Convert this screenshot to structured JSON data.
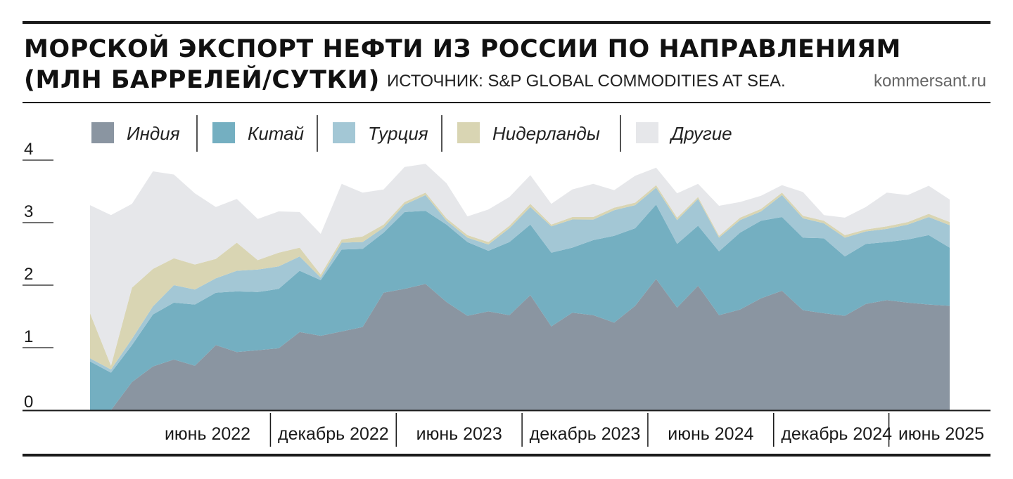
{
  "header": {
    "title_line1": "МОРСКОЙ ЭКСПОРТ НЕФТИ ИЗ РОССИИ ПО НАПРАВЛЕНИЯМ",
    "title_line2": "(МЛН БАРРЕЛЕЙ/СУТКИ)",
    "source": "ИСТОЧНИК: S&P GLOBAL COMMODITIES AT SEA.",
    "brand": "kommersant.ru"
  },
  "chart_data": {
    "type": "area",
    "stacked": true,
    "ylim": [
      0,
      4
    ],
    "y_ticks": [
      0,
      1,
      2,
      3,
      4
    ],
    "x_tick_labels": [
      "июнь 2022",
      "декабрь 2022",
      "июнь 2023",
      "декабрь 2023",
      "июнь 2024",
      "декабрь 2024",
      "июнь 2025"
    ],
    "x_tick_indices": [
      5,
      11,
      17,
      23,
      29,
      35,
      41
    ],
    "legend_position": "top",
    "series": [
      {
        "name": "Индия",
        "color": "#8a95a1",
        "values": [
          0.0,
          0.0,
          0.45,
          0.7,
          0.81,
          0.71,
          1.04,
          0.93,
          0.96,
          0.99,
          1.25,
          1.19,
          1.26,
          1.33,
          1.88,
          1.94,
          2.02,
          1.73,
          1.51,
          1.58,
          1.52,
          1.84,
          1.34,
          1.56,
          1.52,
          1.4,
          1.67,
          2.1,
          1.64,
          1.99,
          1.52,
          1.61,
          1.79,
          1.91,
          1.6,
          1.55,
          1.51,
          1.7,
          1.76,
          1.72,
          1.69,
          1.67
        ]
      },
      {
        "name": "Китай",
        "color": "#74afc1",
        "values": [
          0.78,
          0.6,
          0.59,
          0.83,
          0.91,
          0.98,
          0.84,
          0.97,
          0.93,
          0.95,
          0.98,
          0.89,
          1.31,
          1.25,
          0.96,
          1.23,
          1.17,
          1.24,
          1.18,
          0.97,
          1.17,
          1.13,
          1.18,
          1.04,
          1.2,
          1.39,
          1.24,
          1.19,
          1.02,
          0.96,
          1.02,
          1.23,
          1.24,
          1.18,
          1.16,
          1.2,
          0.95,
          0.96,
          0.93,
          1.01,
          1.11,
          0.93
        ]
      },
      {
        "name": "Турция",
        "color": "#a3c7d5",
        "values": [
          0.05,
          0.05,
          0.1,
          0.13,
          0.28,
          0.24,
          0.23,
          0.33,
          0.36,
          0.36,
          0.23,
          0.04,
          0.11,
          0.11,
          0.08,
          0.12,
          0.25,
          0.06,
          0.07,
          0.1,
          0.22,
          0.28,
          0.42,
          0.45,
          0.33,
          0.41,
          0.37,
          0.27,
          0.38,
          0.43,
          0.22,
          0.2,
          0.15,
          0.35,
          0.31,
          0.24,
          0.3,
          0.2,
          0.21,
          0.24,
          0.29,
          0.36
        ]
      },
      {
        "name": "Нидерланды",
        "color": "#d9d5b3",
        "values": [
          0.72,
          0.06,
          0.82,
          0.6,
          0.43,
          0.4,
          0.31,
          0.45,
          0.15,
          0.22,
          0.14,
          0.05,
          0.05,
          0.09,
          0.05,
          0.04,
          0.04,
          0.04,
          0.04,
          0.04,
          0.04,
          0.05,
          0.03,
          0.04,
          0.04,
          0.04,
          0.04,
          0.04,
          0.04,
          0.03,
          0.03,
          0.04,
          0.04,
          0.04,
          0.04,
          0.04,
          0.04,
          0.03,
          0.04,
          0.04,
          0.05,
          0.05
        ]
      },
      {
        "name": "Другие",
        "color": "#e6e7ea",
        "values": [
          1.73,
          2.41,
          1.34,
          1.56,
          1.34,
          1.14,
          0.83,
          0.7,
          0.66,
          0.66,
          0.57,
          0.65,
          0.89,
          0.7,
          0.56,
          0.56,
          0.46,
          0.56,
          0.3,
          0.52,
          0.46,
          0.46,
          0.33,
          0.44,
          0.53,
          0.28,
          0.43,
          0.28,
          0.39,
          0.21,
          0.48,
          0.25,
          0.21,
          0.12,
          0.38,
          0.09,
          0.28,
          0.36,
          0.54,
          0.43,
          0.45,
          0.36
        ]
      }
    ]
  }
}
